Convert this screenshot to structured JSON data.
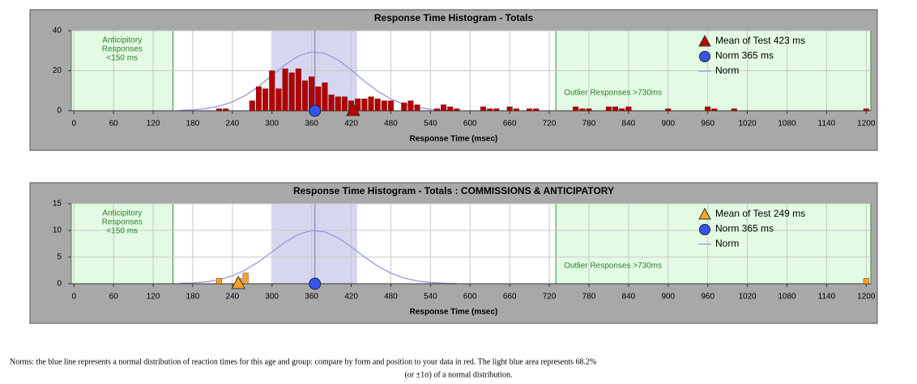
{
  "chart_data": [
    {
      "type": "bar",
      "title": "Response Time Histogram - Totals",
      "xlabel": "Response Time (msec)",
      "x": [
        220,
        230,
        270,
        280,
        290,
        300,
        310,
        320,
        330,
        340,
        350,
        360,
        370,
        380,
        390,
        400,
        410,
        420,
        430,
        440,
        450,
        460,
        470,
        480,
        500,
        510,
        520,
        550,
        560,
        570,
        580,
        620,
        630,
        640,
        660,
        670,
        690,
        700,
        760,
        770,
        780,
        810,
        820,
        830,
        840,
        900,
        960,
        970,
        1000,
        1200
      ],
      "values": [
        1,
        1,
        5,
        12,
        11,
        20,
        11,
        21,
        19,
        21,
        15,
        17,
        12,
        14,
        8,
        7,
        7,
        5,
        6,
        6,
        7,
        6,
        5,
        5,
        4,
        5,
        3,
        1,
        3,
        2,
        1,
        2,
        1,
        1,
        2,
        1,
        1,
        1,
        2,
        1,
        1,
        2,
        2,
        1,
        2,
        1,
        2,
        1,
        1,
        1
      ],
      "color": "#b30000",
      "xlim": [
        -4,
        1207
      ],
      "ylim": [
        0,
        40
      ],
      "xticks": [
        0,
        60,
        120,
        180,
        240,
        300,
        360,
        420,
        480,
        540,
        600,
        660,
        720,
        780,
        840,
        900,
        960,
        1020,
        1080,
        1140,
        1200
      ],
      "yticks": [
        0,
        20,
        40
      ],
      "grid": true,
      "mean": 423,
      "mean_color": "#c00000",
      "norm_mean": 365,
      "norm_color": "#3355ee",
      "curve_color": "#9999dd",
      "norm_band": [
        301,
        429
      ],
      "anticipatory_limit": 150,
      "outlier_limit": 730,
      "norm_curve": {
        "x": [
          160,
          180,
          200,
          220,
          240,
          260,
          280,
          300,
          320,
          340,
          360,
          380,
          400,
          420,
          440,
          460,
          480,
          500,
          520,
          540,
          560,
          580
        ],
        "values": [
          0.2,
          0.45,
          1.1,
          2.3,
          4.4,
          7.7,
          12.2,
          17.6,
          23.0,
          27.3,
          29.4,
          28.7,
          25.4,
          20.4,
          14.8,
          9.8,
          5.9,
          3.2,
          1.6,
          0.7,
          0.3,
          0.1
        ]
      },
      "anticipatory_label": [
        "Anticipitory",
        "Responses",
        "<150 ms"
      ],
      "outlier_label": "Outlier Responses >730ms",
      "legend": [
        "Mean of Test 423 ms",
        "Norm 365 ms",
        "Norm"
      ]
    },
    {
      "type": "bar",
      "title": "Response Time Histogram  - Totals : COMMISSIONS & ANTICIPATORY",
      "xlabel": "Response Time (msec)",
      "x": [
        220,
        250,
        260,
        1200
      ],
      "values": [
        1,
        1,
        2,
        1
      ],
      "color": "#f5a623",
      "xlim": [
        -4,
        1207
      ],
      "ylim": [
        0,
        15
      ],
      "xticks": [
        0,
        60,
        120,
        180,
        240,
        300,
        360,
        420,
        480,
        540,
        600,
        660,
        720,
        780,
        840,
        900,
        960,
        1020,
        1080,
        1140,
        1200
      ],
      "yticks": [
        0,
        5,
        10,
        15
      ],
      "grid": true,
      "mean": 249,
      "mean_color": "#f5a623",
      "norm_mean": 365,
      "norm_color": "#3355ee",
      "curve_color": "#9999dd",
      "norm_band": [
        301,
        429
      ],
      "anticipatory_limit": 150,
      "outlier_limit": 730,
      "norm_curve": {
        "x": [
          160,
          180,
          200,
          220,
          240,
          260,
          280,
          300,
          320,
          340,
          360,
          380,
          400,
          420,
          440,
          460,
          480,
          500,
          520,
          540,
          560,
          580
        ],
        "values": [
          0.07,
          0.15,
          0.36,
          0.77,
          1.49,
          2.6,
          4.14,
          5.97,
          7.81,
          9.27,
          9.97,
          9.73,
          8.61,
          6.91,
          5.03,
          3.32,
          1.99,
          1.08,
          0.53,
          0.24,
          0.1,
          0.04
        ]
      },
      "anticipatory_label": [
        "Anticipitory",
        "Responses",
        "<150 ms"
      ],
      "outlier_label": "Outlier Responses >730ms",
      "legend": [
        "Mean of Test 249 ms",
        "Norm 365 ms",
        "Norm"
      ]
    }
  ],
  "footnote": [
    "Norms: the blue line represents a normal distribution of reaction times for this age and group: compare by form and position to your data in red. The light blue area represents 68.2%",
    "(or ±1σ) of a normal distribution."
  ]
}
